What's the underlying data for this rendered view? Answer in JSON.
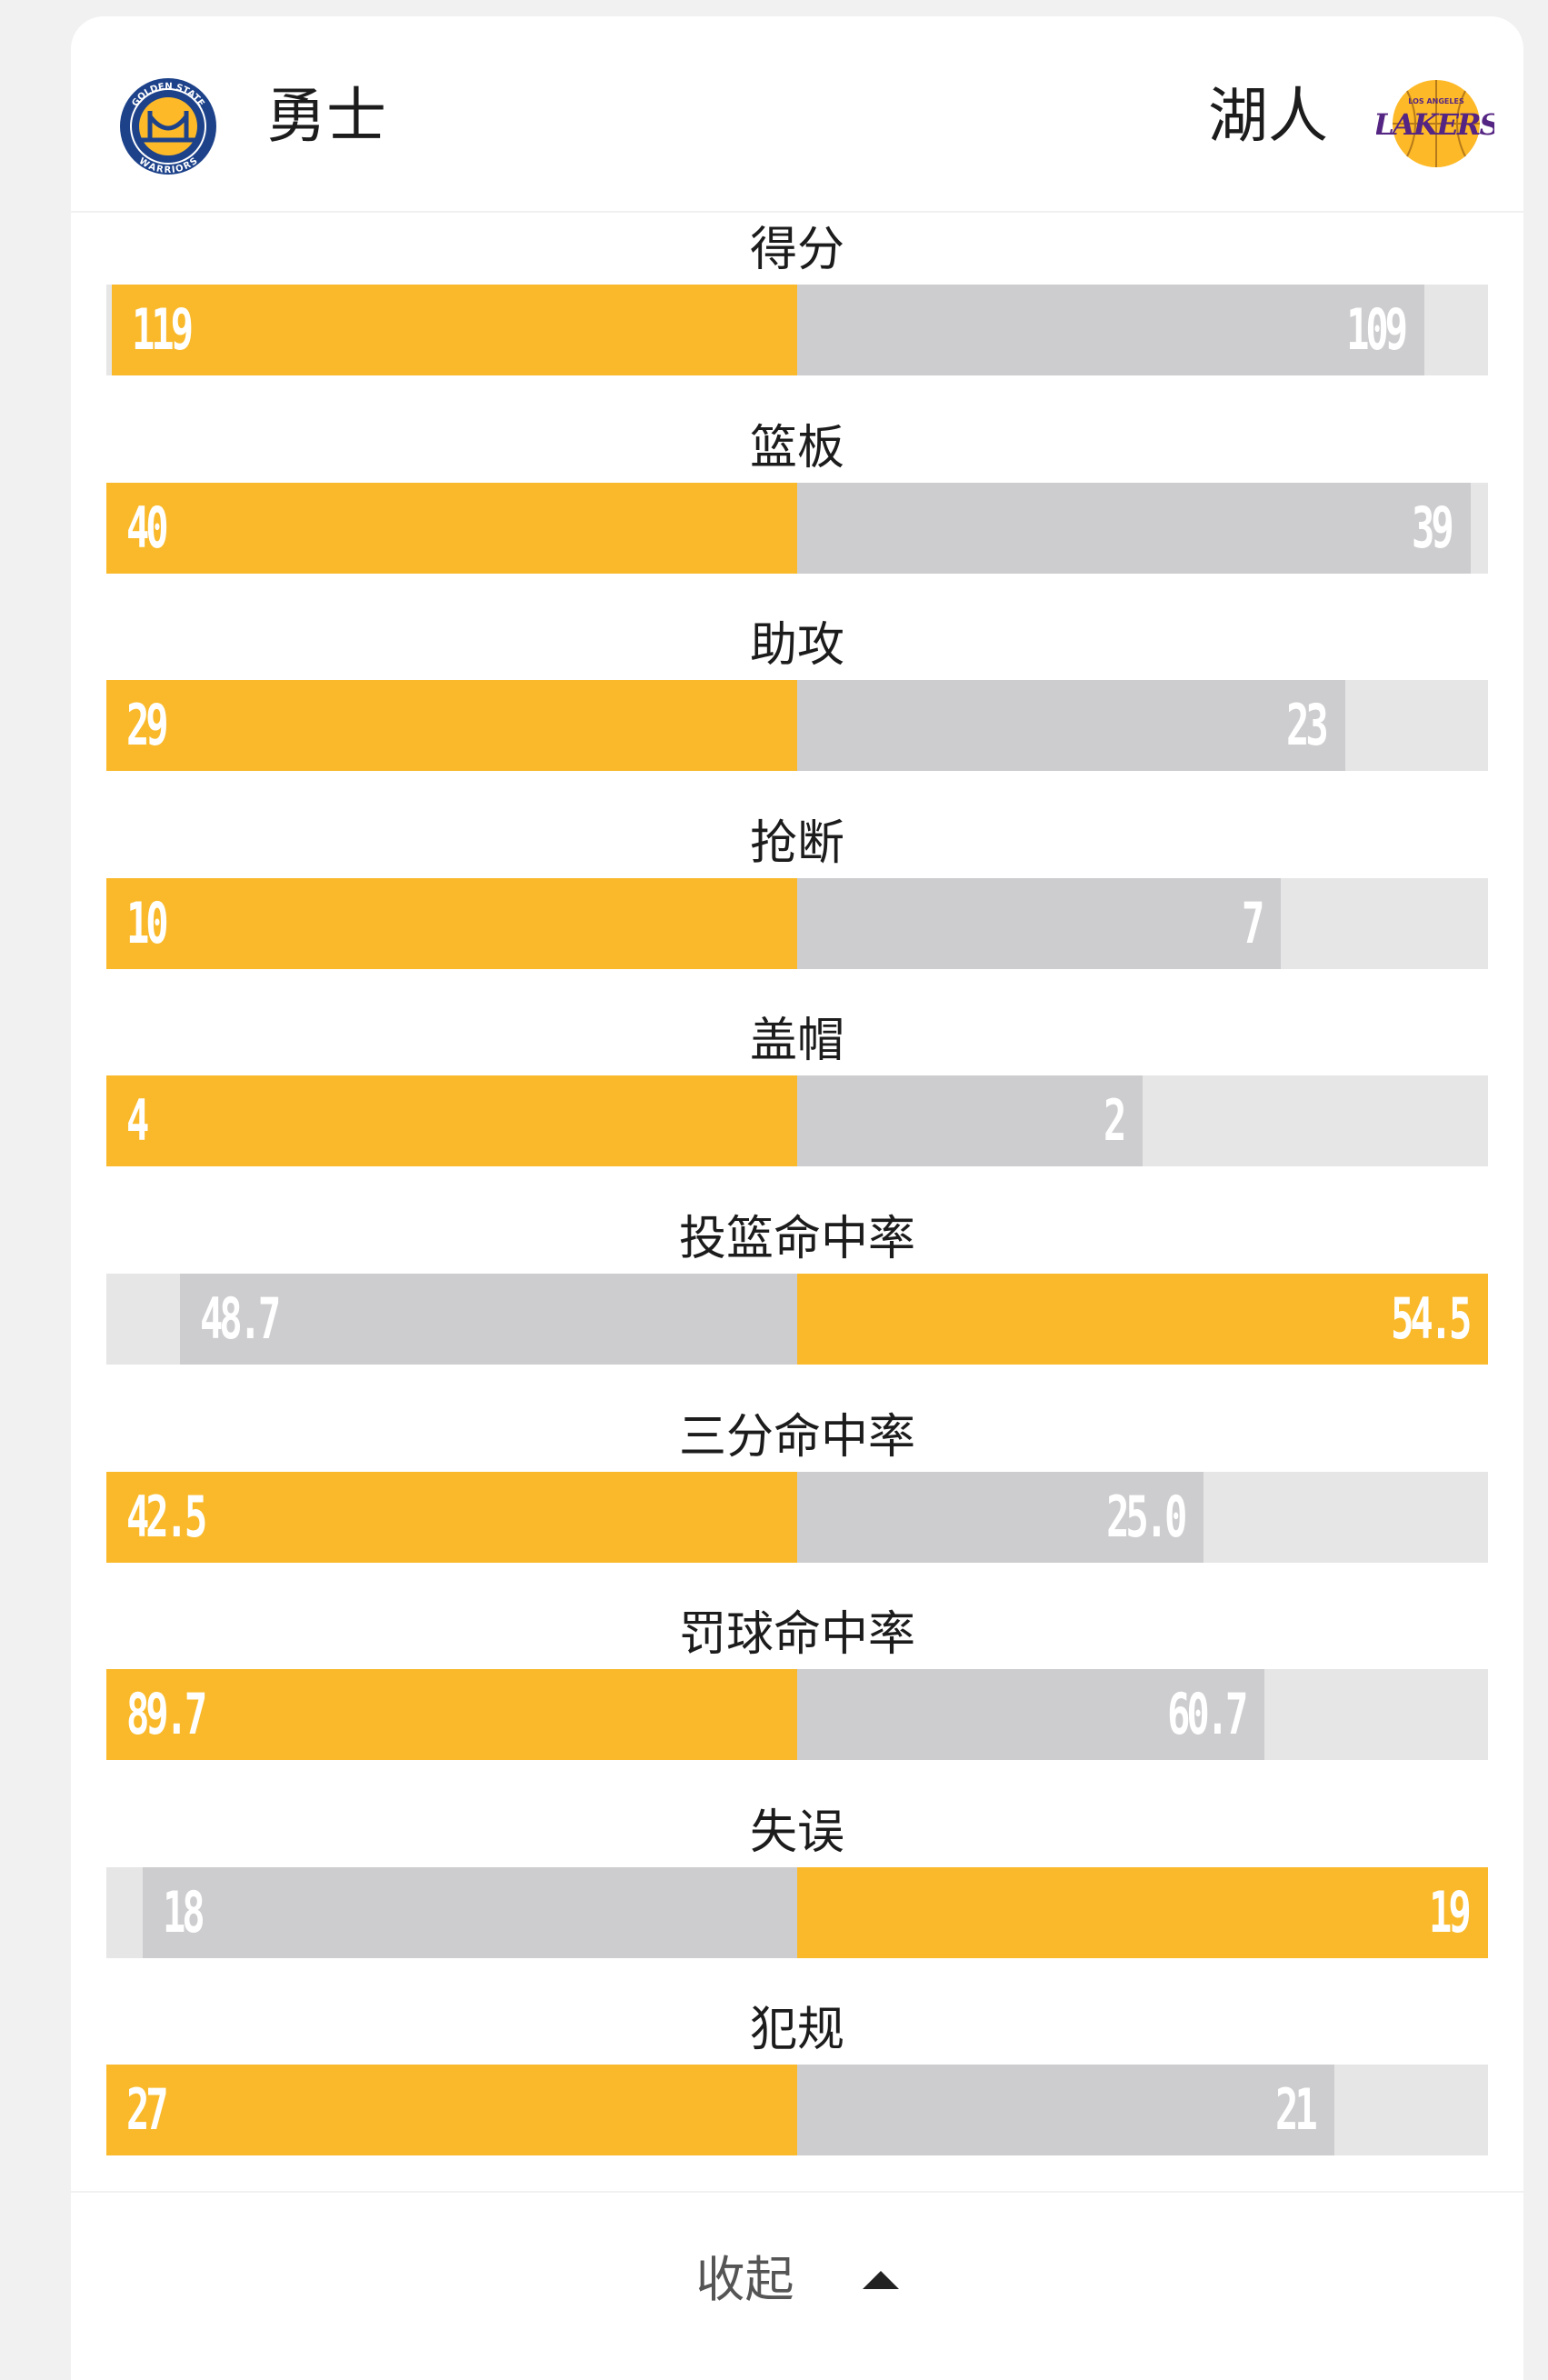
{
  "home": {
    "name": "勇士",
    "logo_icon": "golden-state-warriors-logo",
    "logo_text_top": "GOLDEN STATE",
    "logo_text_bottom": "WARRIORS"
  },
  "away": {
    "name": "湖人",
    "logo_icon": "los-angeles-lakers-logo",
    "logo_text_top": "LOS ANGELES",
    "logo_text": "LAKERS"
  },
  "colors": {
    "winner": "#f9b92b",
    "loser": "#cdcdcf",
    "track": "#e6e6e6"
  },
  "stats": [
    {
      "label": "得分",
      "home": "119",
      "away": "109",
      "max": 120
    },
    {
      "label": "篮板",
      "home": "40",
      "away": "39",
      "max": 40
    },
    {
      "label": "助攻",
      "home": "29",
      "away": "23",
      "max": 29
    },
    {
      "label": "抢断",
      "home": "10",
      "away": "7",
      "max": 10
    },
    {
      "label": "盖帽",
      "home": "4",
      "away": "2",
      "max": 4
    },
    {
      "label": "投篮命中率",
      "home": "48.7",
      "away": "54.5",
      "max": 54.5
    },
    {
      "label": "三分命中率",
      "home": "42.5",
      "away": "25.0",
      "max": 42.5
    },
    {
      "label": "罚球命中率",
      "home": "89.7",
      "away": "60.7",
      "max": 89.7
    },
    {
      "label": "失误",
      "home": "18",
      "away": "19",
      "max": 19
    },
    {
      "label": "犯规",
      "home": "27",
      "away": "21",
      "max": 27
    }
  ],
  "footer": {
    "collapse_label": "收起",
    "caret_icon": "caret-up-icon"
  }
}
